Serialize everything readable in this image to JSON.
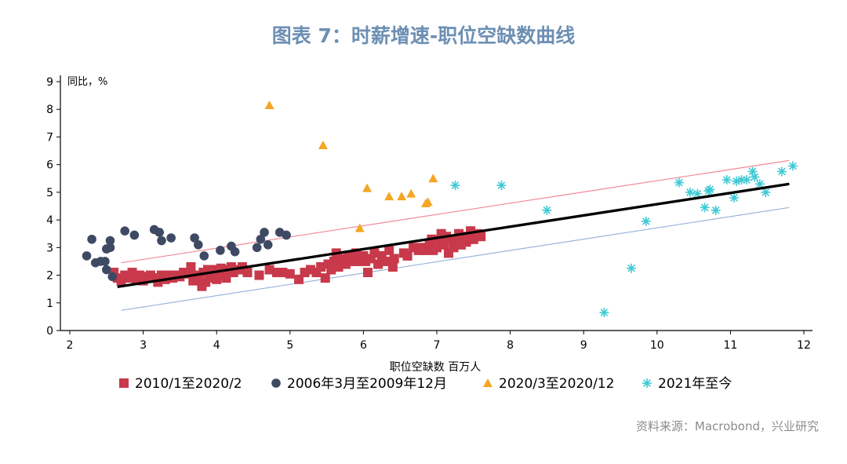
{
  "header": {
    "title": "图表 7：时薪增速-职位空缺数曲线"
  },
  "footer": {
    "source": "资料来源：Macrobond，兴业研究"
  },
  "chart_data": {
    "type": "scatter",
    "ylabel": "同比，%",
    "xlabel": "职位空缺数 百万人",
    "xlim": [
      2,
      12
    ],
    "ylim": [
      0,
      9
    ],
    "xticks": [
      2,
      3,
      4,
      5,
      6,
      7,
      8,
      9,
      10,
      11,
      12
    ],
    "yticks": [
      0,
      1,
      2,
      3,
      4,
      5,
      6,
      7,
      8,
      9
    ],
    "grid": false,
    "legend_position": "bottom",
    "series": [
      {
        "name": "2010/1至2020/2",
        "marker": "square",
        "color": "#c8394b",
        "points": [
          [
            2.6,
            2.1
          ],
          [
            2.65,
            1.9
          ],
          [
            2.7,
            1.8
          ],
          [
            2.75,
            2.0
          ],
          [
            2.8,
            1.9
          ],
          [
            2.85,
            2.1
          ],
          [
            2.9,
            1.85
          ],
          [
            2.95,
            2.0
          ],
          [
            3.0,
            1.8
          ],
          [
            3.05,
            1.95
          ],
          [
            3.1,
            2.0
          ],
          [
            3.15,
            1.9
          ],
          [
            3.2,
            1.75
          ],
          [
            3.25,
            2.0
          ],
          [
            3.3,
            1.85
          ],
          [
            3.35,
            2.0
          ],
          [
            3.4,
            1.9
          ],
          [
            3.45,
            2.0
          ],
          [
            3.5,
            1.95
          ],
          [
            3.55,
            2.1
          ],
          [
            3.6,
            2.05
          ],
          [
            3.65,
            2.3
          ],
          [
            3.68,
            1.8
          ],
          [
            3.72,
            2.0
          ],
          [
            3.76,
            1.9
          ],
          [
            3.8,
            1.6
          ],
          [
            3.82,
            2.1
          ],
          [
            3.85,
            1.75
          ],
          [
            3.88,
            2.2
          ],
          [
            3.9,
            1.9
          ],
          [
            3.93,
            2.0
          ],
          [
            3.96,
            2.2
          ],
          [
            4.0,
            1.85
          ],
          [
            4.03,
            2.1
          ],
          [
            4.06,
            2.25
          ],
          [
            4.1,
            2.0
          ],
          [
            4.13,
            1.9
          ],
          [
            4.16,
            2.2
          ],
          [
            4.2,
            2.3
          ],
          [
            4.23,
            2.1
          ],
          [
            4.3,
            2.2
          ],
          [
            4.35,
            2.3
          ],
          [
            4.42,
            2.1
          ],
          [
            4.58,
            2.0
          ],
          [
            4.72,
            2.2
          ],
          [
            4.82,
            2.1
          ],
          [
            4.9,
            2.1
          ],
          [
            5.0,
            2.05
          ],
          [
            5.12,
            1.85
          ],
          [
            5.2,
            2.1
          ],
          [
            5.28,
            2.2
          ],
          [
            5.36,
            2.1
          ],
          [
            5.42,
            2.3
          ],
          [
            5.48,
            1.9
          ],
          [
            5.52,
            2.4
          ],
          [
            5.56,
            2.2
          ],
          [
            5.6,
            2.5
          ],
          [
            5.63,
            2.8
          ],
          [
            5.66,
            2.3
          ],
          [
            5.7,
            2.5
          ],
          [
            5.73,
            2.6
          ],
          [
            5.76,
            2.4
          ],
          [
            5.8,
            2.7
          ],
          [
            5.83,
            2.5
          ],
          [
            5.86,
            2.6
          ],
          [
            5.9,
            2.8
          ],
          [
            5.93,
            2.5
          ],
          [
            5.96,
            2.6
          ],
          [
            6.0,
            2.7
          ],
          [
            6.03,
            2.5
          ],
          [
            6.06,
            2.1
          ],
          [
            6.1,
            2.6
          ],
          [
            6.15,
            2.8
          ],
          [
            6.2,
            2.4
          ],
          [
            6.25,
            2.7
          ],
          [
            6.3,
            2.5
          ],
          [
            6.35,
            2.9
          ],
          [
            6.4,
            2.3
          ],
          [
            6.42,
            2.6
          ],
          [
            6.55,
            2.8
          ],
          [
            6.6,
            2.7
          ],
          [
            6.68,
            3.0
          ],
          [
            6.75,
            2.9
          ],
          [
            6.8,
            3.0
          ],
          [
            6.85,
            2.9
          ],
          [
            6.9,
            3.1
          ],
          [
            6.93,
            3.3
          ],
          [
            6.95,
            2.9
          ],
          [
            7.0,
            3.0
          ],
          [
            7.03,
            3.2
          ],
          [
            7.06,
            3.5
          ],
          [
            7.1,
            3.1
          ],
          [
            7.13,
            3.4
          ],
          [
            7.16,
            2.8
          ],
          [
            7.2,
            3.3
          ],
          [
            7.23,
            3.0
          ],
          [
            7.26,
            3.2
          ],
          [
            7.3,
            3.5
          ],
          [
            7.33,
            3.1
          ],
          [
            7.36,
            3.4
          ],
          [
            7.4,
            3.2
          ],
          [
            7.43,
            3.3
          ],
          [
            7.46,
            3.6
          ],
          [
            7.5,
            3.3
          ],
          [
            7.55,
            3.5
          ],
          [
            7.6,
            3.4
          ]
        ]
      },
      {
        "name": "2006年3月至2009年12月",
        "marker": "circle",
        "color": "#3e4a63",
        "points": [
          [
            2.23,
            2.7
          ],
          [
            2.3,
            3.3
          ],
          [
            2.35,
            2.45
          ],
          [
            2.42,
            2.5
          ],
          [
            2.48,
            2.5
          ],
          [
            2.5,
            2.95
          ],
          [
            2.5,
            2.2
          ],
          [
            2.55,
            3.0
          ],
          [
            2.55,
            3.25
          ],
          [
            2.58,
            1.95
          ],
          [
            2.75,
            3.6
          ],
          [
            2.88,
            3.45
          ],
          [
            3.15,
            3.65
          ],
          [
            3.22,
            3.55
          ],
          [
            3.25,
            3.25
          ],
          [
            3.38,
            3.35
          ],
          [
            3.7,
            3.35
          ],
          [
            3.75,
            3.1
          ],
          [
            3.83,
            2.7
          ],
          [
            4.05,
            2.9
          ],
          [
            4.2,
            3.05
          ],
          [
            4.25,
            2.85
          ],
          [
            4.55,
            3.0
          ],
          [
            4.6,
            3.3
          ],
          [
            4.65,
            3.55
          ],
          [
            4.7,
            3.1
          ],
          [
            4.86,
            3.55
          ],
          [
            4.95,
            3.45
          ]
        ]
      },
      {
        "name": "2020/3至2020/12",
        "marker": "triangle",
        "color": "#f5a623",
        "points": [
          [
            4.72,
            8.15
          ],
          [
            5.45,
            6.7
          ],
          [
            5.95,
            3.7
          ],
          [
            6.05,
            5.15
          ],
          [
            6.35,
            4.85
          ],
          [
            6.52,
            4.85
          ],
          [
            6.65,
            4.95
          ],
          [
            6.85,
            4.6
          ],
          [
            6.88,
            4.65
          ],
          [
            6.95,
            5.5
          ]
        ]
      },
      {
        "name": "2021年至今",
        "marker": "asterisk",
        "color": "#3ec9d4",
        "points": [
          [
            7.25,
            5.25
          ],
          [
            7.88,
            5.25
          ],
          [
            8.5,
            4.35
          ],
          [
            9.28,
            0.65
          ],
          [
            9.65,
            2.25
          ],
          [
            9.85,
            3.95
          ],
          [
            10.3,
            5.35
          ],
          [
            10.45,
            5.0
          ],
          [
            10.55,
            4.95
          ],
          [
            10.65,
            4.45
          ],
          [
            10.7,
            5.05
          ],
          [
            10.72,
            5.1
          ],
          [
            10.8,
            4.35
          ],
          [
            10.95,
            5.45
          ],
          [
            11.05,
            4.8
          ],
          [
            11.08,
            5.4
          ],
          [
            11.15,
            5.45
          ],
          [
            11.22,
            5.45
          ],
          [
            11.3,
            5.75
          ],
          [
            11.33,
            5.55
          ],
          [
            11.4,
            5.3
          ],
          [
            11.48,
            5.0
          ],
          [
            11.7,
            5.75
          ],
          [
            11.85,
            5.95
          ]
        ]
      }
    ],
    "lines": [
      {
        "color": "#000000",
        "width": 3.2,
        "points": [
          [
            2.65,
            1.58
          ],
          [
            11.8,
            5.3
          ]
        ]
      },
      {
        "color": "#f08a99",
        "width": 1.2,
        "points": [
          [
            2.7,
            2.45
          ],
          [
            11.8,
            6.15
          ]
        ]
      },
      {
        "color": "#9bb5da",
        "width": 1.2,
        "points": [
          [
            2.7,
            0.73
          ],
          [
            11.8,
            4.45
          ]
        ]
      }
    ]
  }
}
